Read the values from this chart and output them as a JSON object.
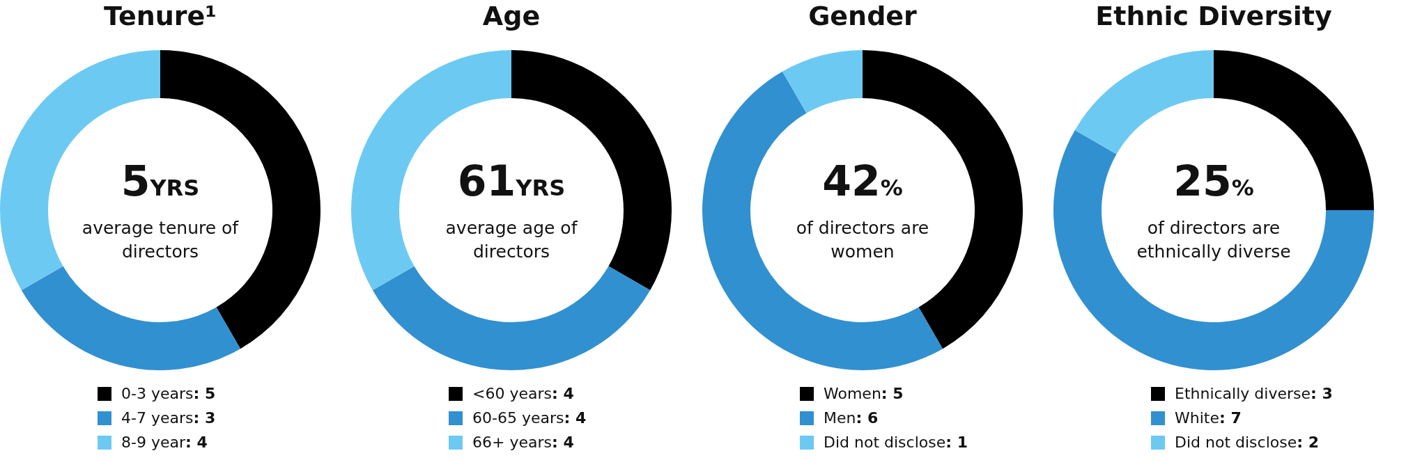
{
  "chart_data": [
    {
      "type": "donut",
      "title": "Tenure¹",
      "categories": [
        "0-3 years",
        "4-7 years",
        "8-9 year"
      ],
      "values": [
        5,
        3,
        4
      ],
      "value_labels": [
        ": 5",
        ": 3",
        ": 4"
      ],
      "colors": [
        "#000000",
        "#3190d0",
        "#6ccaf2"
      ],
      "legend": "bottom",
      "annotations": [
        "5YRS",
        "average tenure of directors"
      ]
    },
    {
      "type": "donut",
      "title": "Age",
      "categories": [
        "<60 years",
        "60-65 years",
        "66+ years"
      ],
      "values": [
        4,
        4,
        4
      ],
      "value_labels": [
        ": 4",
        ": 4",
        ": 4"
      ],
      "colors": [
        "#000000",
        "#3190d0",
        "#6ccaf2"
      ],
      "legend": "bottom",
      "annotations": [
        "61YRS",
        "average age of directors"
      ]
    },
    {
      "type": "donut",
      "title": "Gender",
      "categories": [
        "Women",
        "Men",
        "Did not disclose"
      ],
      "values": [
        5,
        6,
        1
      ],
      "value_labels": [
        ": 5",
        ": 6",
        ": 1"
      ],
      "colors": [
        "#000000",
        "#3190d0",
        "#6ccaf2"
      ],
      "legend": "bottom",
      "annotations": [
        "42%",
        "of directors are women"
      ]
    },
    {
      "type": "donut",
      "title": "Ethnic Diversity",
      "categories": [
        "Ethnically diverse",
        "White",
        "Did not disclose"
      ],
      "values": [
        3,
        7,
        2
      ],
      "value_labels": [
        ": 3",
        ": 7",
        ": 2"
      ],
      "colors": [
        "#000000",
        "#3190d0",
        "#6ccaf2"
      ],
      "legend": "bottom",
      "annotations": [
        "25%",
        "of directors are ethnically diverse"
      ]
    }
  ]
}
